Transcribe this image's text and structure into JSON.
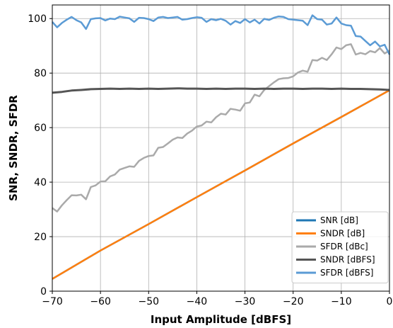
{
  "chart_data": {
    "type": "line",
    "xlabel": "Input Amplitude [dBFS]",
    "ylabel": "SNR, SNDR, SFDR",
    "xlim": [
      -70,
      0
    ],
    "ylim": [
      0,
      105
    ],
    "xticks": [
      -70,
      -60,
      -50,
      -40,
      -30,
      -20,
      -10,
      0
    ],
    "yticks": [
      0,
      20,
      40,
      60,
      80,
      100
    ],
    "grid": true,
    "legend_position": "bottom-right",
    "series": [
      {
        "name": "SNR [dB]",
        "color": "#1f77b4",
        "x": [
          -70,
          -60,
          -50,
          -40,
          -30,
          -20,
          -10,
          -5,
          0
        ],
        "y": [
          4.5,
          14.9,
          24.6,
          34.5,
          44.3,
          54.2,
          63.9,
          68.8,
          73.7
        ]
      },
      {
        "name": "SNDR [dB]",
        "color": "#ff7f0e",
        "x": [
          -70,
          -60,
          -50,
          -40,
          -30,
          -20,
          -10,
          -5,
          0
        ],
        "y": [
          4.5,
          14.9,
          24.6,
          34.5,
          44.3,
          54.2,
          63.9,
          68.8,
          73.7
        ]
      },
      {
        "name": "SFDR [dBc]",
        "color": "#aaaaaa",
        "x": [
          -70,
          -69,
          -68,
          -67,
          -66,
          -65,
          -64,
          -63,
          -62,
          -61,
          -60,
          -59,
          -58,
          -57,
          -56,
          -55,
          -54,
          -53,
          -52,
          -51,
          -50,
          -49,
          -48,
          -47,
          -46,
          -45,
          -44,
          -43,
          -42,
          -41,
          -40,
          -39,
          -38,
          -37,
          -36,
          -35,
          -34,
          -33,
          -32,
          -31,
          -30,
          -29,
          -28,
          -27,
          -26,
          -25,
          -24,
          -23,
          -22,
          -21,
          -20,
          -19,
          -18,
          -17,
          -16,
          -15,
          -14,
          -13,
          -12,
          -11,
          -10,
          -9,
          -8,
          -7,
          -6,
          -5,
          -4,
          -3,
          -2,
          -1,
          0
        ],
        "y": [
          30.5,
          29.2,
          31.5,
          33.4,
          35.2,
          35.1,
          35.4,
          33.7,
          38.2,
          38.8,
          40.2,
          40.3,
          42.1,
          42.8,
          44.6,
          45.2,
          45.8,
          45.6,
          47.8,
          48.9,
          49.6,
          49.8,
          52.6,
          52.9,
          54.2,
          55.6,
          56.4,
          56.2,
          57.8,
          58.9,
          60.4,
          60.8,
          62.2,
          61.9,
          63.8,
          65.1,
          64.8,
          66.9,
          66.6,
          66.2,
          68.9,
          69.2,
          72.1,
          71.5,
          73.8,
          75.2,
          76.6,
          77.8,
          78.1,
          78.2,
          78.8,
          80.2,
          80.9,
          80.5,
          84.8,
          84.6,
          85.6,
          84.8,
          86.9,
          89.4,
          88.8,
          90.2,
          90.6,
          86.8,
          87.4,
          86.9,
          88.1,
          87.6,
          89.2,
          87.2,
          88.3
        ]
      },
      {
        "name": "SNDR [dBFS]",
        "color": "#555555",
        "x": [
          -70,
          -68,
          -66,
          -64,
          -62,
          -60,
          -58,
          -56,
          -54,
          -52,
          -50,
          -48,
          -46,
          -44,
          -42,
          -40,
          -38,
          -36,
          -34,
          -32,
          -30,
          -28,
          -26,
          -24,
          -22,
          -20,
          -18,
          -16,
          -14,
          -12,
          -10,
          -8,
          -6,
          -4,
          -2,
          0
        ],
        "y": [
          72.8,
          73.1,
          73.6,
          73.8,
          74.1,
          74.2,
          74.3,
          74.2,
          74.3,
          74.2,
          74.3,
          74.2,
          74.3,
          74.4,
          74.3,
          74.3,
          74.2,
          74.3,
          74.2,
          74.3,
          74.3,
          74.2,
          74.3,
          74.2,
          74.3,
          74.3,
          74.2,
          74.3,
          74.3,
          74.2,
          74.3,
          74.2,
          74.2,
          74.1,
          74.0,
          73.8
        ]
      },
      {
        "name": "SFDR [dBFS]",
        "color": "#5b9bd5",
        "x": [
          -70,
          -69,
          -68,
          -67,
          -66,
          -65,
          -64,
          -63,
          -62,
          -61,
          -60,
          -59,
          -58,
          -57,
          -56,
          -55,
          -54,
          -53,
          -52,
          -51,
          -50,
          -49,
          -48,
          -47,
          -46,
          -45,
          -44,
          -43,
          -42,
          -41,
          -40,
          -39,
          -38,
          -37,
          -36,
          -35,
          -34,
          -33,
          -32,
          -31,
          -30,
          -29,
          -28,
          -27,
          -26,
          -25,
          -24,
          -23,
          -22,
          -21,
          -20,
          -19,
          -18,
          -17,
          -16,
          -15,
          -14,
          -13,
          -12,
          -11,
          -10,
          -9,
          -8,
          -7,
          -6,
          -5,
          -4,
          -3,
          -2,
          -1,
          0
        ],
        "y": [
          98.8,
          96.8,
          98.4,
          99.6,
          100.6,
          99.4,
          98.6,
          96.2,
          99.8,
          100.1,
          100.2,
          99.3,
          100.0,
          99.8,
          100.7,
          100.4,
          100.1,
          98.8,
          100.3,
          100.2,
          99.8,
          99.1,
          100.4,
          100.6,
          100.2,
          100.4,
          100.6,
          99.6,
          99.8,
          100.2,
          100.5,
          100.3,
          98.8,
          99.8,
          99.4,
          99.9,
          99.2,
          97.8,
          99.1,
          98.4,
          99.8,
          98.6,
          99.6,
          98.2,
          99.9,
          99.5,
          100.3,
          100.8,
          100.6,
          99.8,
          99.6,
          99.4,
          99.2,
          97.6,
          101.2,
          99.8,
          99.6,
          97.8,
          98.2,
          100.4,
          98.2,
          97.6,
          97.4,
          93.6,
          93.4,
          91.8,
          90.2,
          91.6,
          89.8,
          90.4,
          86.8
        ]
      }
    ]
  }
}
